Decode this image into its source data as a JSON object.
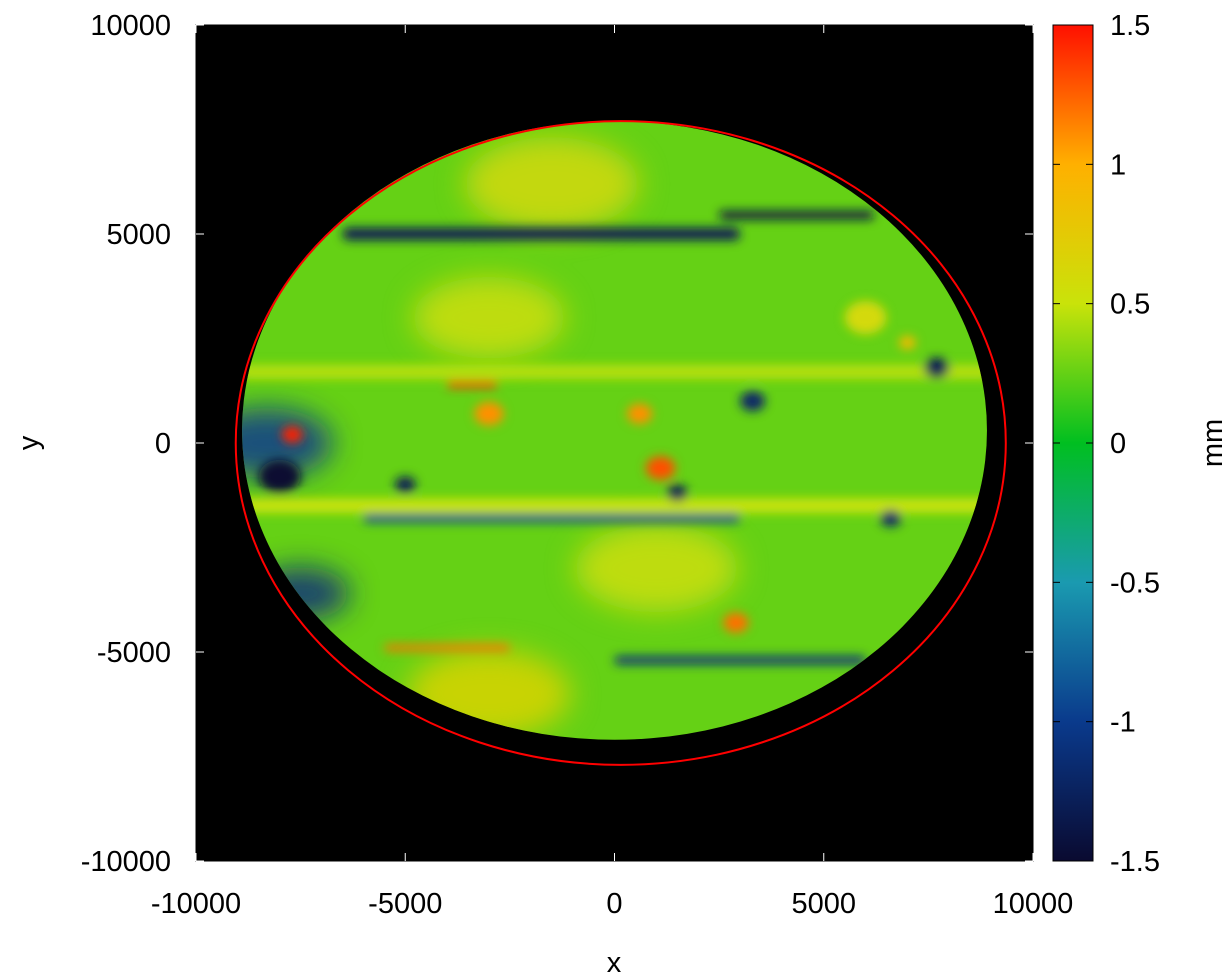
{
  "chart_data": {
    "type": "heatmap",
    "title": "",
    "xlabel": "x",
    "ylabel": "y",
    "xlim": [
      -10000,
      10000
    ],
    "ylim": [
      -10000,
      10000
    ],
    "x_ticks": [
      -10000,
      -5000,
      0,
      5000,
      10000
    ],
    "y_ticks": [
      -10000,
      -5000,
      0,
      5000,
      10000
    ],
    "x_tick_labels": [
      "-10000",
      "-5000",
      "0",
      "5000",
      "10000"
    ],
    "y_tick_labels": [
      "-10000",
      "-5000",
      "0",
      "5000",
      "10000"
    ],
    "grid": false,
    "background_color": "#000000",
    "colorbar": {
      "label": "mm",
      "range": [
        -1.5,
        1.5
      ],
      "ticks": [
        -1.5,
        -1,
        -0.5,
        0,
        0.5,
        1,
        1.5
      ],
      "tick_labels": [
        "-1.5",
        "-1",
        "-0.5",
        "0",
        "0.5",
        "1",
        "1.5"
      ],
      "colors": [
        "#0a0a30",
        "#0a3a8c",
        "#1a9ab0",
        "#00bf20",
        "#c9e30a",
        "#ffb000",
        "#ff1000"
      ]
    },
    "data_region": {
      "shape": "ellipse",
      "center": [
        0,
        300
      ],
      "radius_x": 8900,
      "radius_y": 7400
    },
    "reference_circle": {
      "center": [
        150,
        0
      ],
      "radius_x": 9200,
      "radius_y": 7700,
      "color": "#ff0000"
    },
    "dominant_value": 0.25,
    "features": [
      {
        "kind": "band",
        "y": 5000,
        "x_range": [
          -6500,
          3000
        ],
        "value": -1.3,
        "thickness": 300
      },
      {
        "kind": "band",
        "y": 5450,
        "x_range": [
          2500,
          6200
        ],
        "value": -1.4,
        "thickness": 200
      },
      {
        "kind": "band",
        "y": 1700,
        "x_range": [
          -9000,
          9000
        ],
        "value": 0.45,
        "thickness": 350
      },
      {
        "kind": "band",
        "y": 1400,
        "x_range": [
          -4000,
          -2800
        ],
        "value": 1.4,
        "thickness": 150
      },
      {
        "kind": "band",
        "y": -1500,
        "x_range": [
          -9000,
          9000
        ],
        "value": 0.5,
        "thickness": 350
      },
      {
        "kind": "band",
        "y": -1800,
        "x_range": [
          -6000,
          3000
        ],
        "value": -0.9,
        "thickness": 200
      },
      {
        "kind": "band",
        "y": -5200,
        "x_range": [
          0,
          6000
        ],
        "value": -1.1,
        "thickness": 200
      },
      {
        "kind": "band",
        "y": -4900,
        "x_range": [
          -5500,
          -2500
        ],
        "value": 1.2,
        "thickness": 150
      },
      {
        "kind": "spot",
        "x": -8000,
        "y": -800,
        "value": -1.5,
        "radius": 500
      },
      {
        "kind": "spot",
        "x": -7700,
        "y": 200,
        "value": 1.45,
        "radius": 250
      },
      {
        "kind": "spot",
        "x": 1100,
        "y": -600,
        "value": 1.3,
        "radius": 350
      },
      {
        "kind": "spot",
        "x": 600,
        "y": 700,
        "value": 1.1,
        "radius": 300
      },
      {
        "kind": "spot",
        "x": -3000,
        "y": 700,
        "value": 1.1,
        "radius": 350
      },
      {
        "kind": "spot",
        "x": 2900,
        "y": -4300,
        "value": 1.2,
        "radius": 300
      },
      {
        "kind": "spot",
        "x": 7000,
        "y": 2400,
        "value": 0.9,
        "radius": 200
      },
      {
        "kind": "spot",
        "x": -5000,
        "y": -1000,
        "value": -1.3,
        "radius": 250
      },
      {
        "kind": "spot",
        "x": 3300,
        "y": 1000,
        "value": -1.2,
        "radius": 300
      },
      {
        "kind": "spot",
        "x": 6600,
        "y": -1800,
        "value": -1.2,
        "radius": 250
      },
      {
        "kind": "spot",
        "x": 7700,
        "y": 1800,
        "value": -1.3,
        "radius": 300
      },
      {
        "kind": "spot",
        "x": 1500,
        "y": -1200,
        "value": -1.3,
        "radius": 250
      },
      {
        "kind": "spot",
        "x": 6000,
        "y": 3000,
        "value": 0.6,
        "radius": 500
      },
      {
        "kind": "region",
        "x": -8300,
        "y": 0,
        "value": -1.0,
        "radius": 1200
      },
      {
        "kind": "region",
        "x": -7500,
        "y": -3600,
        "value": -1.1,
        "radius": 900
      },
      {
        "kind": "region",
        "x": -1500,
        "y": 6200,
        "value": 0.6,
        "radius": 1600
      },
      {
        "kind": "region",
        "x": -3000,
        "y": -6000,
        "value": 0.65,
        "radius": 1500
      },
      {
        "kind": "region",
        "x": -3000,
        "y": 3000,
        "value": 0.55,
        "radius": 1400
      },
      {
        "kind": "region",
        "x": 1000,
        "y": -3000,
        "value": 0.55,
        "radius": 1500
      }
    ]
  }
}
